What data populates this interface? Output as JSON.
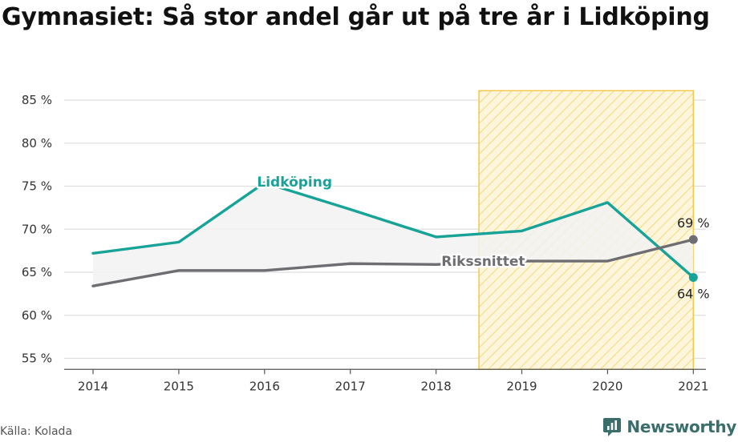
{
  "title": "Gymnasiet: Så stor andel går ut på tre år i Lidköping",
  "source": "Källa: Kolada",
  "brand": {
    "name": "Newsworthy",
    "icon": "newsworthy-logo-icon",
    "color": "#3a6e6d"
  },
  "colors": {
    "lidkoping": "#17a398",
    "riket": "#6e6e72",
    "highlight": "#f2c94c",
    "band": "#f2f2f2"
  },
  "chart_data": {
    "type": "line",
    "title": "Gymnasiet: Så stor andel går ut på tre år i Lidköping",
    "x": [
      2014,
      2015,
      2016,
      2017,
      2018,
      2019,
      2020,
      2021
    ],
    "x_tick_labels": [
      "2014",
      "2015",
      "2016",
      "2017",
      "2018",
      "2019",
      "2020",
      "2021"
    ],
    "ylim": [
      54,
      86
    ],
    "y_ticks": [
      55,
      60,
      65,
      70,
      75,
      80,
      85
    ],
    "y_tick_labels": [
      "55 %",
      "60 %",
      "65 %",
      "70 %",
      "75 %",
      "80 %",
      "85 %"
    ],
    "grid": true,
    "highlight_range": [
      2018.5,
      2021
    ],
    "series": [
      {
        "name": "Lidköping",
        "values": [
          67.2,
          68.5,
          75.4,
          72.3,
          69.1,
          69.8,
          73.1,
          64.4
        ]
      },
      {
        "name": "Rikssnittet",
        "values": [
          63.4,
          65.2,
          65.2,
          66.0,
          65.9,
          66.3,
          66.3,
          68.8
        ]
      }
    ],
    "end_labels": [
      "64 %",
      "69 %"
    ]
  }
}
